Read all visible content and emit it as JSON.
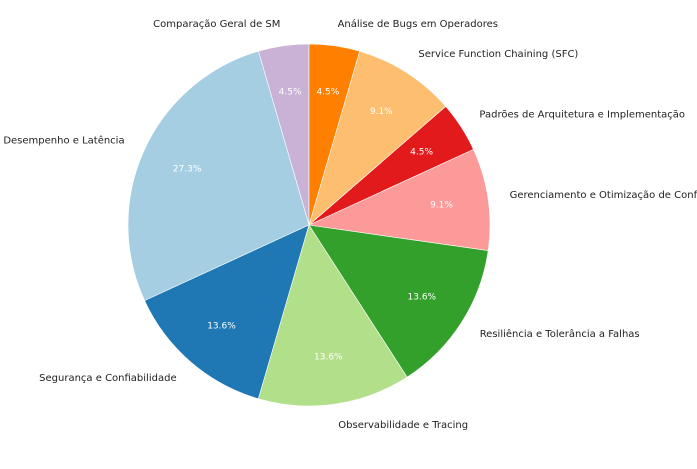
{
  "chart_data": {
    "type": "pie",
    "title": "",
    "start_angle_deg": 90,
    "direction": "counterclockwise",
    "slices": [
      {
        "label": "Comparação Geral de SM",
        "value": 4.5,
        "pct_text": "4.5%",
        "color": "#cab2d6"
      },
      {
        "label": "Desempenho e Latência",
        "value": 27.3,
        "pct_text": "27.3%",
        "color": "#a6cee3"
      },
      {
        "label": "Segurança e Confiabilidade",
        "value": 13.6,
        "pct_text": "13.6%",
        "color": "#1f78b4"
      },
      {
        "label": "Observabilidade e Tracing",
        "value": 13.6,
        "pct_text": "13.6%",
        "color": "#b2df8a"
      },
      {
        "label": "Resiliência e Tolerância a Falhas",
        "value": 13.6,
        "pct_text": "13.6%",
        "color": "#33a02c"
      },
      {
        "label": "Gerenciamento e Otimização de Configs",
        "value": 9.1,
        "pct_text": "9.1%",
        "color": "#fb9a99"
      },
      {
        "label": "Padrões de Arquitetura e Implementação",
        "value": 4.5,
        "pct_text": "4.5%",
        "color": "#e31a1c"
      },
      {
        "label": "Service Function Chaining (SFC)",
        "value": 9.1,
        "pct_text": "9.1%",
        "color": "#fdbf6f"
      },
      {
        "label": "Análise de Bugs em Operadores",
        "value": 4.5,
        "pct_text": "4.5%",
        "color": "#ff7f00"
      }
    ]
  }
}
